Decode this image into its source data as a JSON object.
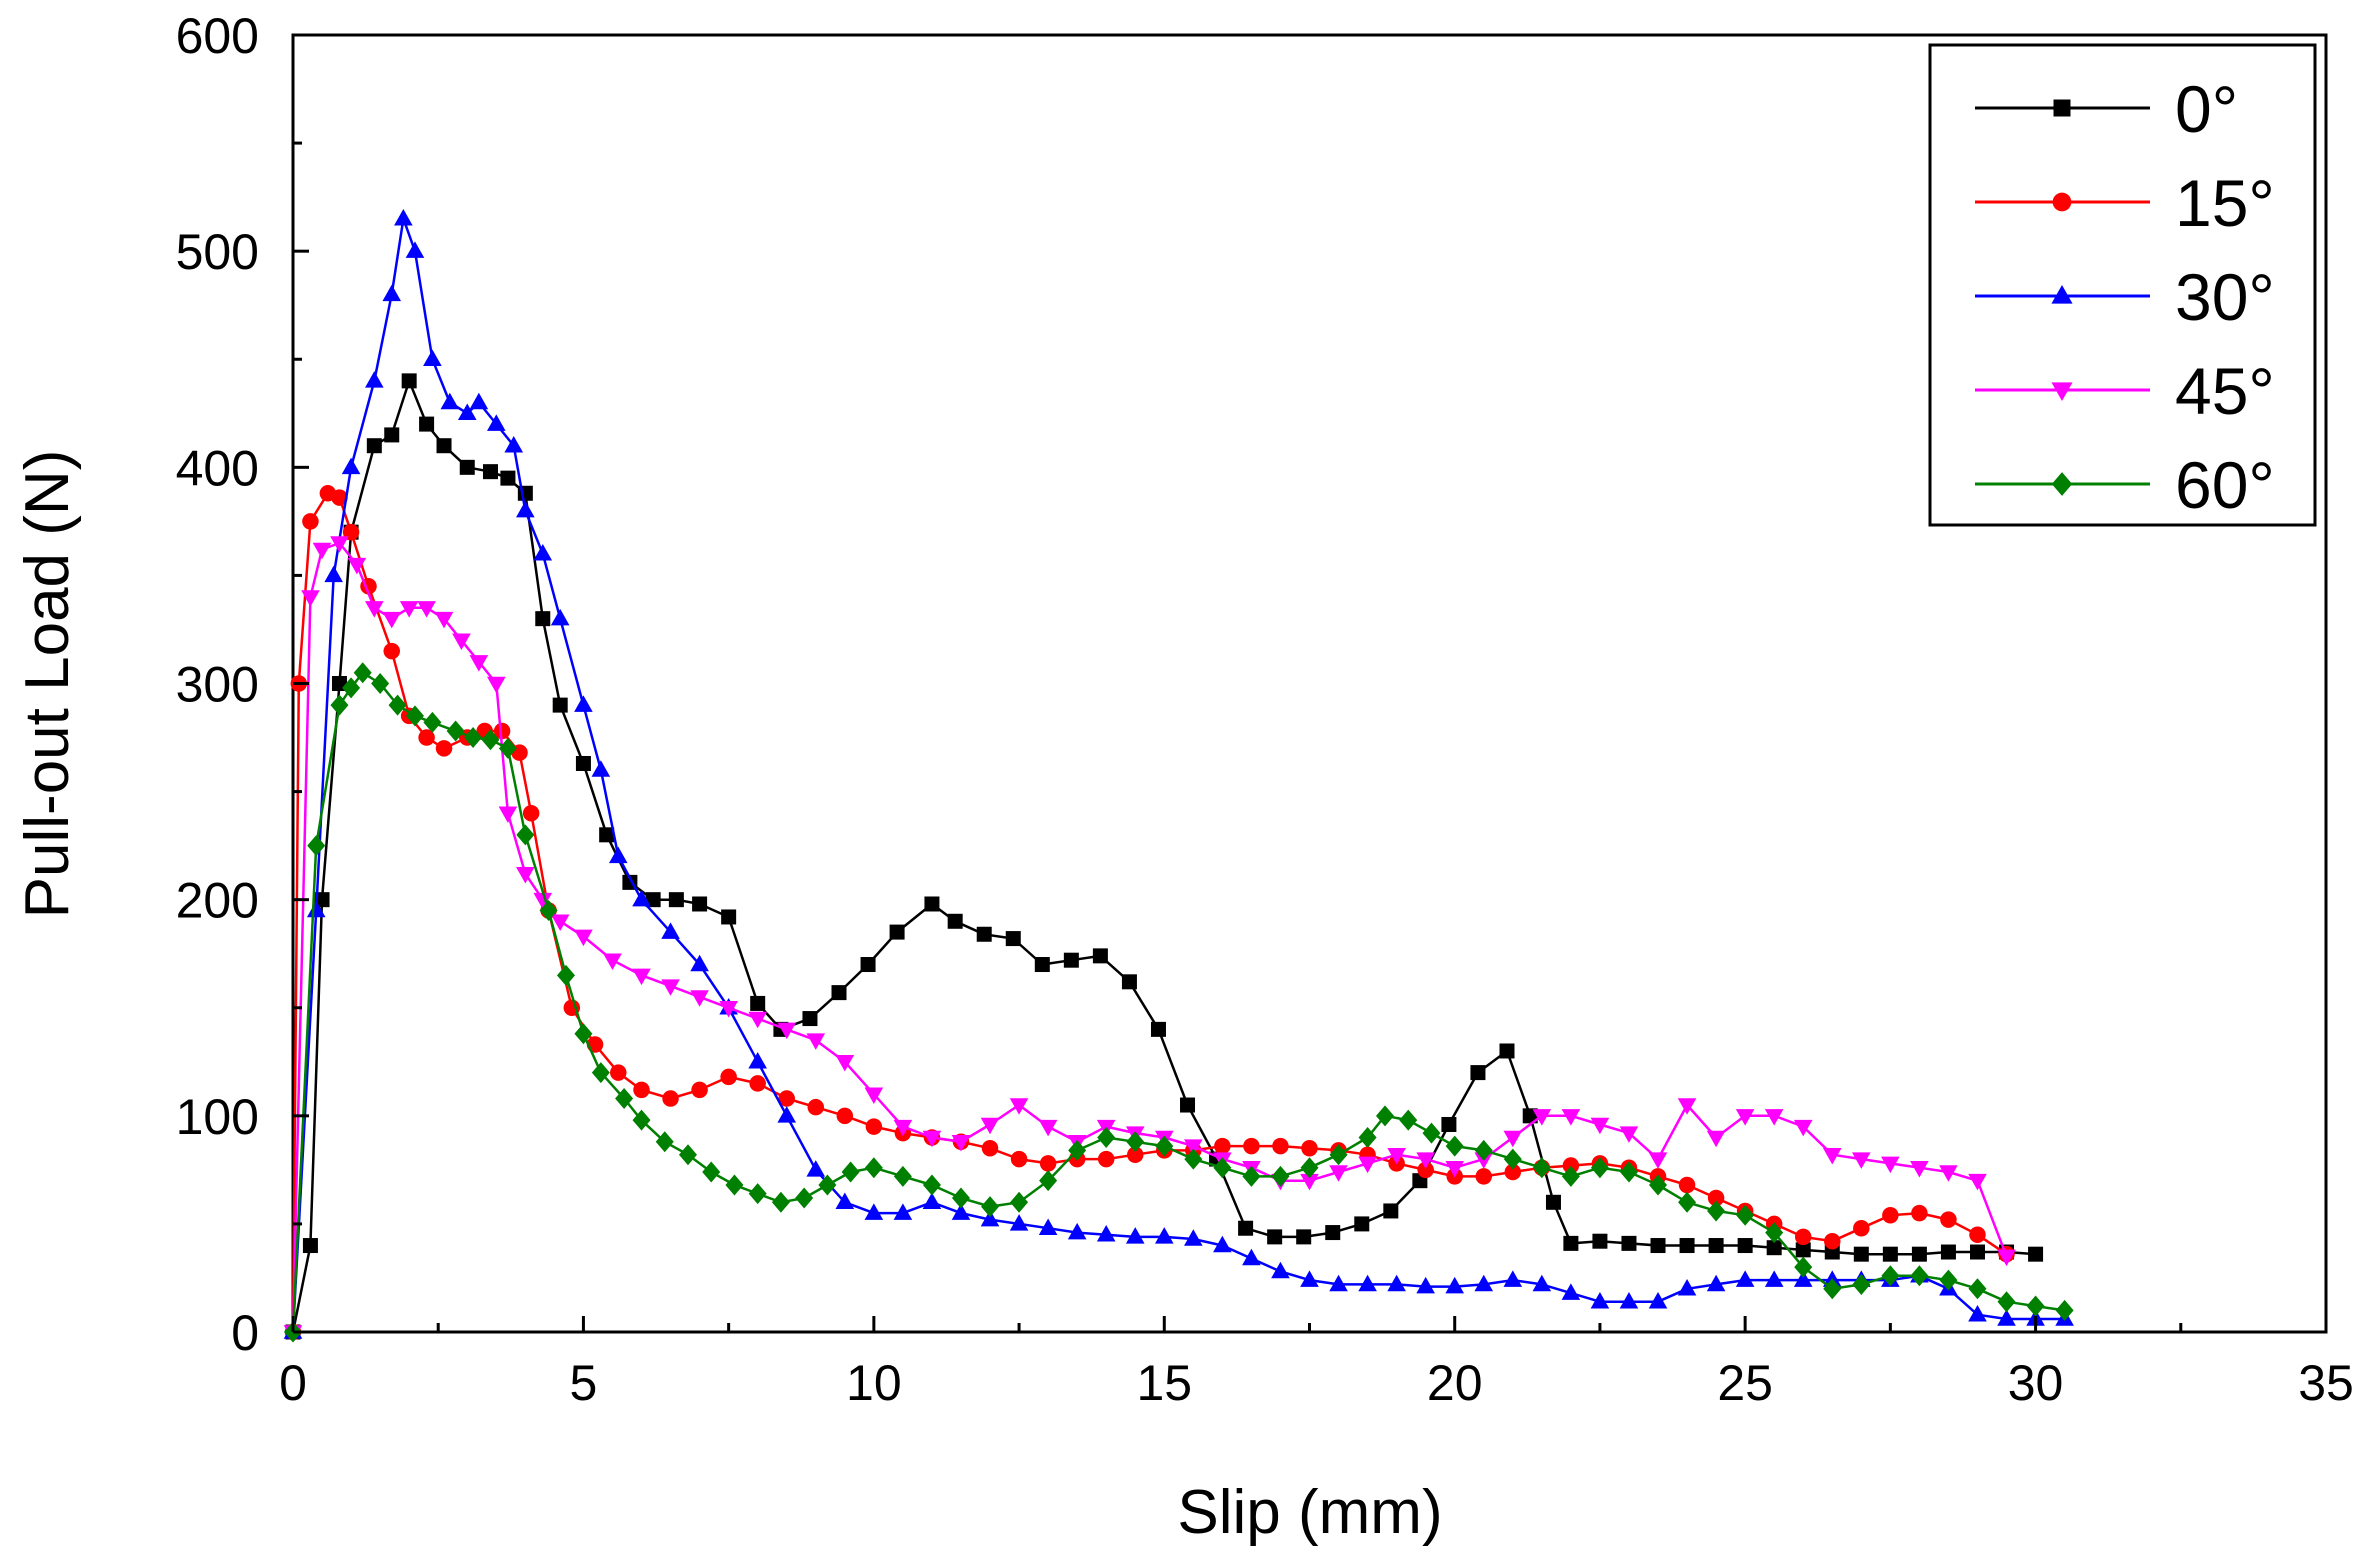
{
  "chart_data": {
    "type": "line",
    "xlabel": "Slip (mm)",
    "ylabel": "Pull-out Load (N)",
    "xlim": [
      0,
      35
    ],
    "ylim": [
      0,
      600
    ],
    "xticks": [
      "0",
      "5",
      "10",
      "15",
      "20",
      "25",
      "30",
      "35"
    ],
    "yticks": [
      "0",
      "100",
      "200",
      "300",
      "400",
      "500",
      "600"
    ],
    "grid": false,
    "legend_position": "top-right",
    "series": [
      {
        "name": "0°",
        "color": "#000000",
        "marker": "square",
        "x": [
          0,
          0.3,
          0.5,
          0.8,
          1.0,
          1.4,
          1.7,
          2.0,
          2.3,
          2.6,
          3.0,
          3.4,
          3.7,
          4.0,
          4.3,
          4.6,
          5.0,
          5.4,
          5.8,
          6.2,
          6.6,
          7.0,
          7.5,
          8.0,
          8.4,
          8.9,
          9.4,
          9.9,
          10.4,
          11.0,
          11.4,
          11.9,
          12.4,
          12.9,
          13.4,
          13.9,
          14.4,
          14.9,
          15.4,
          15.9,
          16.4,
          16.9,
          17.4,
          17.9,
          18.4,
          18.9,
          19.4,
          19.9,
          20.4,
          20.9,
          21.3,
          21.7,
          22.0,
          22.5,
          23.0,
          23.5,
          24.0,
          24.5,
          25.0,
          25.5,
          26.0,
          26.5,
          27.0,
          27.5,
          28.0,
          28.5,
          29.0,
          29.5,
          30.0
        ],
        "y": [
          0,
          40,
          200,
          300,
          370,
          410,
          415,
          440,
          420,
          410,
          400,
          398,
          395,
          388,
          330,
          290,
          263,
          230,
          208,
          200,
          200,
          198,
          192,
          152,
          140,
          145,
          157,
          170,
          185,
          198,
          190,
          184,
          182,
          170,
          172,
          174,
          162,
          140,
          105,
          80,
          48,
          44,
          44,
          46,
          50,
          56,
          70,
          96,
          120,
          130,
          100,
          60,
          41,
          42,
          41,
          40,
          40,
          40,
          40,
          39,
          38,
          37,
          36,
          36,
          36,
          37,
          37,
          37,
          36
        ]
      },
      {
        "name": "15°",
        "color": "#ff0000",
        "marker": "circle",
        "x": [
          0,
          0.1,
          0.3,
          0.6,
          0.8,
          1.0,
          1.3,
          1.7,
          2.0,
          2.3,
          2.6,
          3.0,
          3.3,
          3.6,
          3.9,
          4.1,
          4.4,
          4.8,
          5.2,
          5.6,
          6.0,
          6.5,
          7.0,
          7.5,
          8.0,
          8.5,
          9.0,
          9.5,
          10.0,
          10.5,
          11.0,
          11.5,
          12.0,
          12.5,
          13.0,
          13.5,
          14.0,
          14.5,
          15.0,
          15.5,
          16.0,
          16.5,
          17.0,
          17.5,
          18.0,
          18.5,
          19.0,
          19.5,
          20.0,
          20.5,
          21.0,
          21.5,
          22.0,
          22.5,
          23.0,
          23.5,
          24.0,
          24.5,
          25.0,
          25.5,
          26.0,
          26.5,
          27.0,
          27.5,
          28.0,
          28.5,
          29.0,
          29.5
        ],
        "y": [
          0,
          300,
          375,
          388,
          386,
          370,
          345,
          315,
          285,
          275,
          270,
          275,
          278,
          278,
          268,
          240,
          195,
          150,
          133,
          120,
          112,
          108,
          112,
          118,
          115,
          108,
          104,
          100,
          95,
          92,
          90,
          88,
          85,
          80,
          78,
          80,
          80,
          82,
          84,
          84,
          86,
          86,
          86,
          85,
          84,
          82,
          78,
          75,
          72,
          72,
          74,
          76,
          77,
          78,
          76,
          72,
          68,
          62,
          56,
          50,
          44,
          42,
          48,
          54,
          55,
          52,
          45,
          36
        ]
      },
      {
        "name": "30°",
        "color": "#0000ff",
        "marker": "triangle-up",
        "x": [
          0,
          0.4,
          0.7,
          1.0,
          1.4,
          1.7,
          1.9,
          2.1,
          2.4,
          2.7,
          3.0,
          3.2,
          3.5,
          3.8,
          4.0,
          4.3,
          4.6,
          5.0,
          5.3,
          5.6,
          6.0,
          6.5,
          7.0,
          7.5,
          8.0,
          8.5,
          9.0,
          9.5,
          10.0,
          10.5,
          11.0,
          11.5,
          12.0,
          12.5,
          13.0,
          13.5,
          14.0,
          14.5,
          15.0,
          15.5,
          16.0,
          16.5,
          17.0,
          17.5,
          18.0,
          18.5,
          19.0,
          19.5,
          20.0,
          20.5,
          21.0,
          21.5,
          22.0,
          22.5,
          23.0,
          23.5,
          24.0,
          24.5,
          25.0,
          25.5,
          26.0,
          26.5,
          27.0,
          27.5,
          28.0,
          28.5,
          29.0,
          29.5,
          30.0,
          30.5
        ],
        "y": [
          0,
          195,
          350,
          400,
          440,
          480,
          515,
          500,
          450,
          430,
          425,
          430,
          420,
          410,
          380,
          360,
          330,
          290,
          260,
          220,
          200,
          185,
          170,
          150,
          125,
          100,
          75,
          60,
          55,
          55,
          60,
          55,
          52,
          50,
          48,
          46,
          45,
          44,
          44,
          43,
          40,
          34,
          28,
          24,
          22,
          22,
          22,
          21,
          21,
          22,
          24,
          22,
          18,
          14,
          14,
          14,
          20,
          22,
          24,
          24,
          24,
          24,
          24,
          24,
          26,
          20,
          8,
          6,
          6,
          6
        ]
      },
      {
        "name": "45°",
        "color": "#ff00ff",
        "marker": "triangle-down",
        "x": [
          0,
          0.3,
          0.5,
          0.8,
          1.1,
          1.4,
          1.7,
          2.0,
          2.3,
          2.6,
          2.9,
          3.2,
          3.5,
          3.7,
          4.0,
          4.3,
          4.6,
          5.0,
          5.5,
          6.0,
          6.5,
          7.0,
          7.5,
          8.0,
          8.5,
          9.0,
          9.5,
          10.0,
          10.5,
          11.0,
          11.5,
          12.0,
          12.5,
          13.0,
          13.5,
          14.0,
          14.5,
          15.0,
          15.5,
          16.0,
          16.5,
          17.0,
          17.5,
          18.0,
          18.5,
          19.0,
          19.5,
          20.0,
          20.5,
          21.0,
          21.5,
          22.0,
          22.5,
          23.0,
          23.5,
          24.0,
          24.5,
          25.0,
          25.5,
          26.0,
          26.5,
          27.0,
          27.5,
          28.0,
          28.5,
          29.0,
          29.5
        ],
        "y": [
          0,
          340,
          362,
          365,
          355,
          335,
          330,
          335,
          335,
          330,
          320,
          310,
          300,
          240,
          212,
          200,
          190,
          183,
          172,
          165,
          160,
          155,
          150,
          145,
          140,
          135,
          125,
          110,
          95,
          90,
          88,
          96,
          105,
          95,
          88,
          95,
          92,
          90,
          86,
          80,
          76,
          70,
          70,
          74,
          78,
          82,
          80,
          76,
          80,
          90,
          100,
          100,
          96,
          92,
          80,
          105,
          90,
          100,
          100,
          95,
          82,
          80,
          78,
          76,
          74,
          70,
          35
        ]
      },
      {
        "name": "60°",
        "color": "#008000",
        "marker": "diamond",
        "x": [
          0,
          0.4,
          0.8,
          1.0,
          1.2,
          1.5,
          1.8,
          2.1,
          2.4,
          2.8,
          3.1,
          3.4,
          3.7,
          4.0,
          4.4,
          4.7,
          5.0,
          5.3,
          5.7,
          6.0,
          6.4,
          6.8,
          7.2,
          7.6,
          8.0,
          8.4,
          8.8,
          9.2,
          9.6,
          10.0,
          10.5,
          11.0,
          11.5,
          12.0,
          12.5,
          13.0,
          13.5,
          14.0,
          14.5,
          15.0,
          15.5,
          16.0,
          16.5,
          17.0,
          17.5,
          18.0,
          18.5,
          18.8,
          19.2,
          19.6,
          20.0,
          20.5,
          21.0,
          21.5,
          22.0,
          22.5,
          23.0,
          23.5,
          24.0,
          24.5,
          25.0,
          25.5,
          26.0,
          26.5,
          27.0,
          27.5,
          28.0,
          28.5,
          29.0,
          29.5,
          30.0,
          30.5
        ],
        "y": [
          0,
          225,
          290,
          298,
          305,
          300,
          290,
          285,
          282,
          278,
          275,
          274,
          270,
          230,
          195,
          165,
          138,
          120,
          108,
          98,
          88,
          82,
          74,
          68,
          64,
          60,
          62,
          68,
          74,
          76,
          72,
          68,
          62,
          58,
          60,
          70,
          84,
          90,
          88,
          86,
          80,
          76,
          72,
          72,
          76,
          82,
          90,
          100,
          98,
          92,
          86,
          84,
          80,
          76,
          72,
          76,
          74,
          68,
          60,
          56,
          54,
          46,
          30,
          20,
          22,
          26,
          26,
          24,
          20,
          14,
          12,
          10
        ]
      }
    ]
  }
}
